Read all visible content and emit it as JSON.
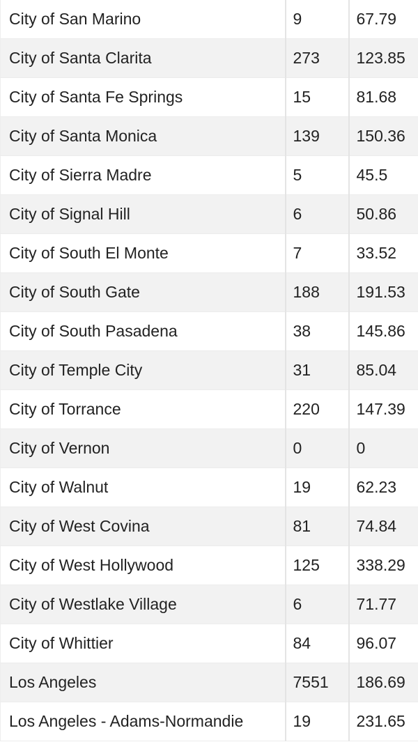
{
  "table": {
    "rows": [
      [
        "City of San Marino",
        "9",
        "67.79"
      ],
      [
        "City of Santa Clarita",
        "273",
        "123.85"
      ],
      [
        "City of Santa Fe Springs",
        "15",
        "81.68"
      ],
      [
        "City of Santa Monica",
        "139",
        "150.36"
      ],
      [
        "City of Sierra Madre",
        "5",
        "45.5"
      ],
      [
        "City of Signal Hill",
        "6",
        "50.86"
      ],
      [
        "City of South El Monte",
        "7",
        "33.52"
      ],
      [
        "City of South Gate",
        "188",
        "191.53"
      ],
      [
        "City of South Pasadena",
        "38",
        "145.86"
      ],
      [
        "City of Temple City",
        "31",
        "85.04"
      ],
      [
        "City of Torrance",
        "220",
        "147.39"
      ],
      [
        "City of Vernon",
        "0",
        "0"
      ],
      [
        "City of Walnut",
        "19",
        "62.23"
      ],
      [
        "City of West Covina",
        "81",
        "74.84"
      ],
      [
        "City of West Hollywood",
        "125",
        "338.29"
      ],
      [
        "City of Westlake Village",
        "6",
        "71.77"
      ],
      [
        "City of Whittier",
        "84",
        "96.07"
      ],
      [
        "Los Angeles",
        "7551",
        "186.69"
      ],
      [
        "Los Angeles - Adams-Normandie",
        "19",
        "231.65"
      ]
    ]
  }
}
